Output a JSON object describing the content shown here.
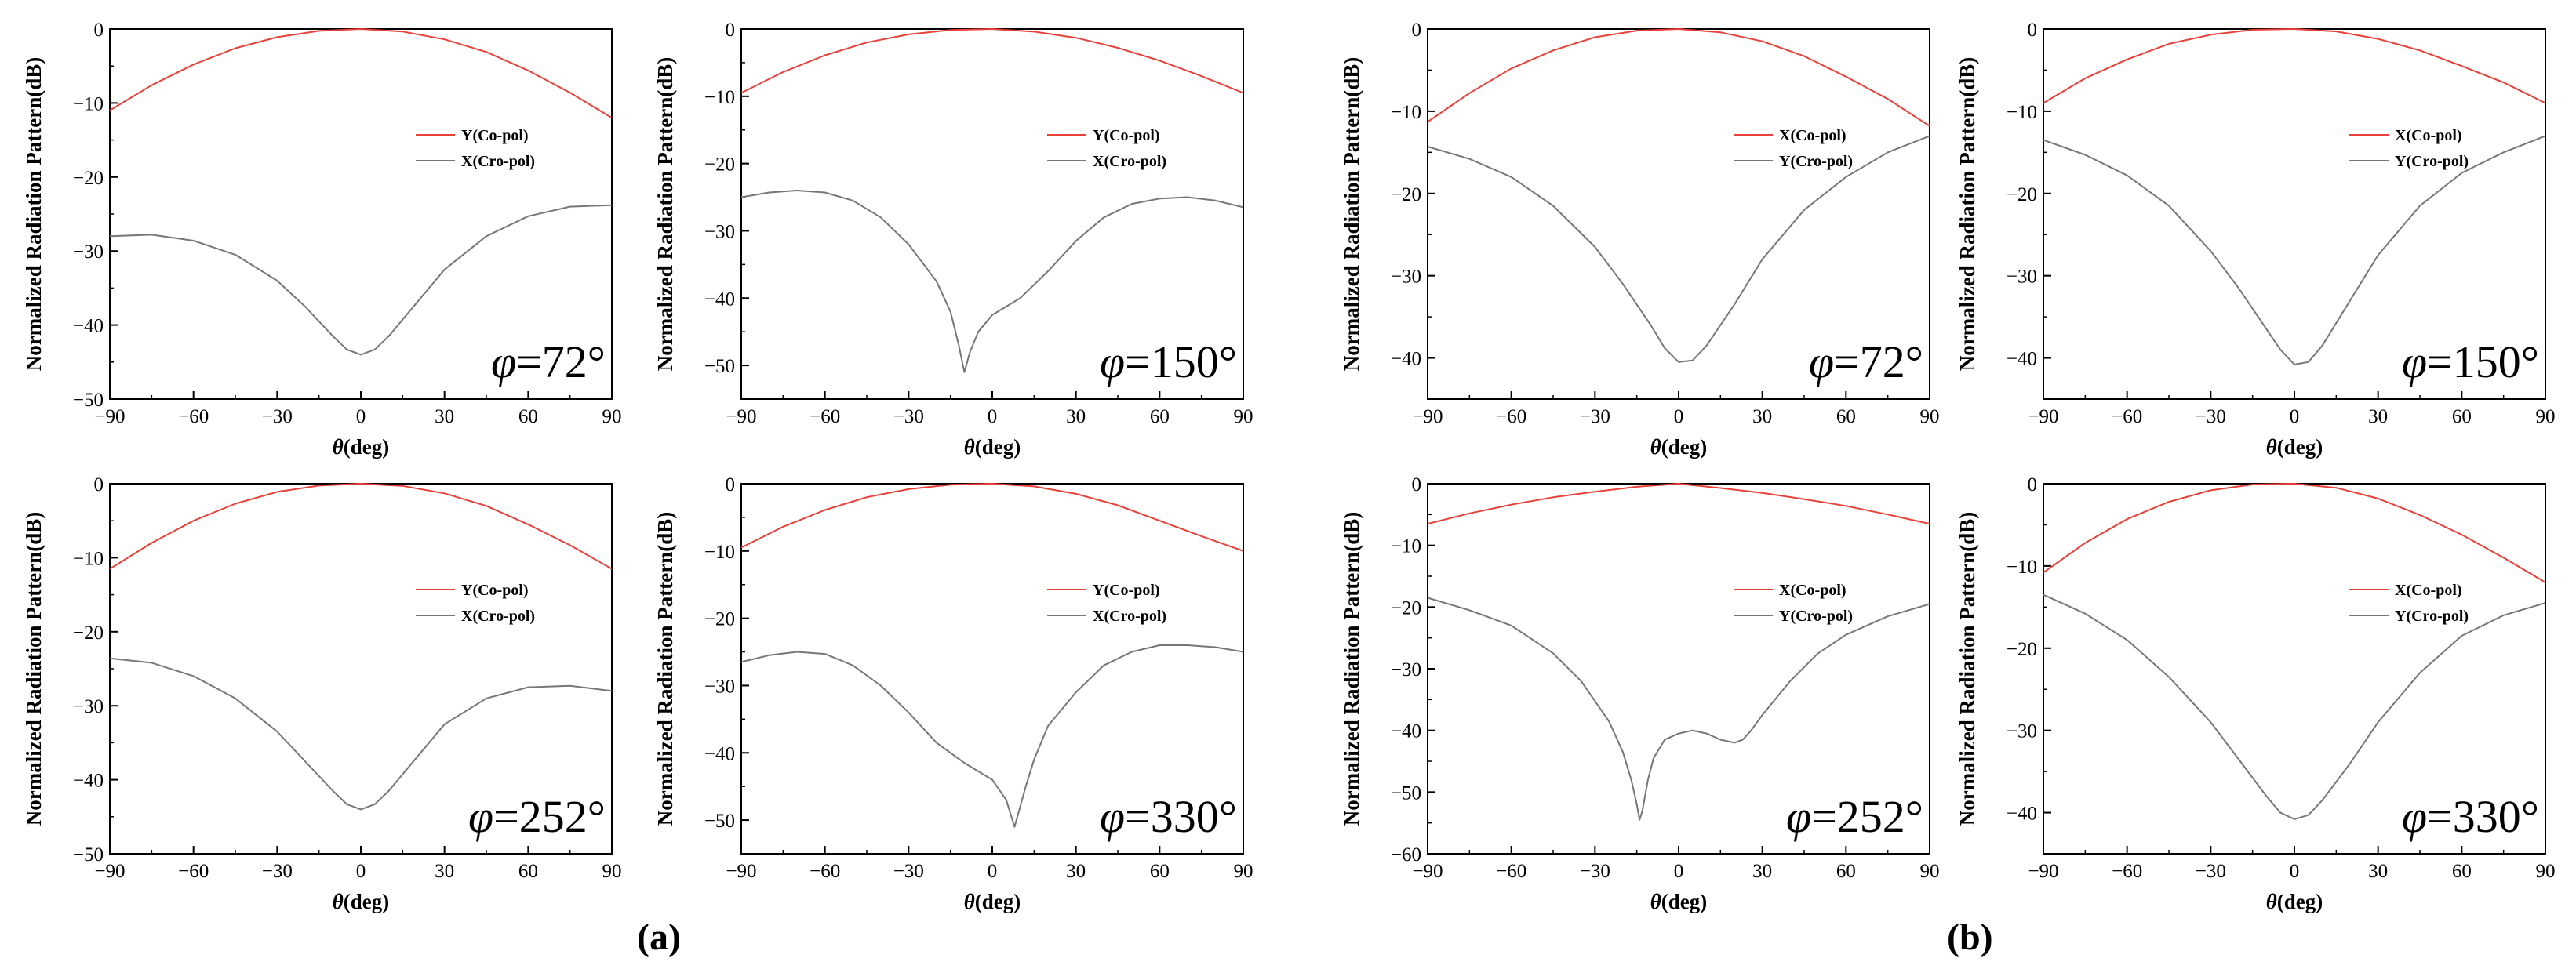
{
  "figure": {
    "labels": [
      "(a)",
      "(b)"
    ],
    "colors": {
      "co_pol": "#e8413a",
      "cross_pol": "#777777",
      "axis": "#000000"
    }
  },
  "chart_data": [
    {
      "type": "line",
      "group": "(a)",
      "annotation_symbol": "φ",
      "annotation_value": "=72°",
      "xlabel_symbol": "θ",
      "xlabel_rest": "(deg)",
      "ylabel": "Normalized Radiation Pattern(dB)",
      "xlim": [
        -90,
        90
      ],
      "ylim": [
        -50,
        0
      ],
      "xticks": [
        -90,
        -60,
        -30,
        0,
        30,
        60,
        90
      ],
      "yticks": [
        0,
        -10,
        -20,
        -30,
        -40,
        -50
      ],
      "legend_position": "right",
      "series": [
        {
          "name": "Y(Co-pol)",
          "color": "#e8413a",
          "x": [
            -90,
            -75,
            -60,
            -45,
            -30,
            -15,
            0,
            15,
            30,
            45,
            60,
            75,
            90
          ],
          "y": [
            -11,
            -7.6,
            -4.8,
            -2.6,
            -1.1,
            -0.25,
            0,
            -0.35,
            -1.4,
            -3.1,
            -5.6,
            -8.6,
            -12
          ]
        },
        {
          "name": "X(Cro-pol)",
          "color": "#777777",
          "x": [
            -90,
            -75,
            -60,
            -45,
            -30,
            -20,
            -10,
            -5,
            0,
            5,
            10,
            20,
            30,
            45,
            60,
            75,
            90
          ],
          "y": [
            -28,
            -27.8,
            -28.6,
            -30.5,
            -34,
            -37.5,
            -41.5,
            -43.3,
            -44,
            -43.3,
            -41.5,
            -37,
            -32.5,
            -28,
            -25.3,
            -24,
            -23.8
          ]
        }
      ]
    },
    {
      "type": "line",
      "group": "(a)",
      "annotation_symbol": "φ",
      "annotation_value": "=150°",
      "xlabel_symbol": "θ",
      "xlabel_rest": "(deg)",
      "ylabel": "Normalized Radiation Pattern(dB)",
      "xlim": [
        -90,
        90
      ],
      "ylim": [
        -55,
        0
      ],
      "xticks": [
        -90,
        -60,
        -30,
        0,
        30,
        60,
        90
      ],
      "yticks": [
        0,
        -10,
        -20,
        -30,
        -40,
        -50
      ],
      "legend_position": "right",
      "series": [
        {
          "name": "Y(Co-pol)",
          "color": "#e8413a",
          "x": [
            -90,
            -75,
            -60,
            -45,
            -30,
            -15,
            0,
            15,
            30,
            45,
            60,
            75,
            90
          ],
          "y": [
            -9.5,
            -6.4,
            -3.9,
            -2.0,
            -0.8,
            -0.15,
            0,
            -0.4,
            -1.3,
            -2.8,
            -4.7,
            -7,
            -9.5
          ]
        },
        {
          "name": "X(Cro-pol)",
          "color": "#777777",
          "x": [
            -90,
            -80,
            -70,
            -60,
            -50,
            -40,
            -30,
            -20,
            -15,
            -12,
            -10,
            -8,
            -5,
            0,
            10,
            20,
            30,
            40,
            50,
            60,
            70,
            80,
            90
          ],
          "y": [
            -25,
            -24.3,
            -24,
            -24.3,
            -25.5,
            -28,
            -32,
            -37.5,
            -42,
            -47,
            -51,
            -48,
            -45,
            -42.5,
            -40,
            -36,
            -31.5,
            -28,
            -26,
            -25.2,
            -25,
            -25.5,
            -26.5
          ]
        }
      ]
    },
    {
      "type": "line",
      "group": "(a)",
      "annotation_symbol": "φ",
      "annotation_value": "=252°",
      "xlabel_symbol": "θ",
      "xlabel_rest": "(deg)",
      "ylabel": "Normalized Radiation Pattern(dB)",
      "xlim": [
        -90,
        90
      ],
      "ylim": [
        -50,
        0
      ],
      "xticks": [
        -90,
        -60,
        -30,
        0,
        30,
        60,
        90
      ],
      "yticks": [
        0,
        -10,
        -20,
        -30,
        -40,
        -50
      ],
      "legend_position": "right",
      "series": [
        {
          "name": "Y(Co-pol)",
          "color": "#e8413a",
          "x": [
            -90,
            -75,
            -60,
            -45,
            -30,
            -15,
            0,
            15,
            30,
            45,
            60,
            75,
            90
          ],
          "y": [
            -11.5,
            -8,
            -5,
            -2.7,
            -1.1,
            -0.25,
            0,
            -0.3,
            -1.3,
            -3,
            -5.5,
            -8.3,
            -11.5
          ]
        },
        {
          "name": "X(Cro-pol)",
          "color": "#777777",
          "x": [
            -90,
            -75,
            -60,
            -45,
            -30,
            -20,
            -10,
            -5,
            0,
            5,
            10,
            20,
            30,
            45,
            60,
            75,
            90
          ],
          "y": [
            -23.6,
            -24.2,
            -26,
            -29,
            -33.5,
            -37.5,
            -41.5,
            -43.3,
            -44,
            -43.3,
            -41.5,
            -37,
            -32.5,
            -29,
            -27.5,
            -27.3,
            -28
          ]
        }
      ]
    },
    {
      "type": "line",
      "group": "(a)",
      "annotation_symbol": "φ",
      "annotation_value": "=330°",
      "xlabel_symbol": "θ",
      "xlabel_rest": "(deg)",
      "ylabel": "Normalized Radiation Pattern(dB)",
      "xlim": [
        -90,
        90
      ],
      "ylim": [
        -55,
        0
      ],
      "xticks": [
        -90,
        -60,
        -30,
        0,
        30,
        60,
        90
      ],
      "yticks": [
        0,
        -10,
        -20,
        -30,
        -40,
        -50
      ],
      "legend_position": "right",
      "series": [
        {
          "name": "Y(Co-pol)",
          "color": "#e8413a",
          "x": [
            -90,
            -75,
            -60,
            -45,
            -30,
            -15,
            0,
            15,
            30,
            45,
            60,
            75,
            90
          ],
          "y": [
            -9.5,
            -6.4,
            -3.9,
            -2,
            -0.8,
            -0.15,
            0,
            -0.4,
            -1.5,
            -3.2,
            -5.5,
            -7.8,
            -10
          ]
        },
        {
          "name": "X(Cro-pol)",
          "color": "#777777",
          "x": [
            -90,
            -80,
            -70,
            -60,
            -50,
            -40,
            -30,
            -20,
            -10,
            0,
            5,
            8,
            10,
            12,
            15,
            20,
            30,
            40,
            50,
            60,
            70,
            80,
            90
          ],
          "y": [
            -26.5,
            -25.5,
            -25,
            -25.3,
            -27,
            -30,
            -34,
            -38.5,
            -41.5,
            -44,
            -47,
            -51,
            -48,
            -45,
            -41,
            -36,
            -31,
            -27,
            -25,
            -24,
            -24,
            -24.3,
            -25
          ]
        }
      ]
    },
    {
      "type": "line",
      "group": "(b)",
      "annotation_symbol": "φ",
      "annotation_value": "=72°",
      "xlabel_symbol": "θ",
      "xlabel_rest": "(deg)",
      "ylabel": "Normalized Radiation Pattern(dB)",
      "xlim": [
        -90,
        90
      ],
      "ylim": [
        -45,
        0
      ],
      "xticks": [
        -90,
        -60,
        -30,
        0,
        30,
        60,
        90
      ],
      "yticks": [
        0,
        -10,
        -20,
        -30,
        -40
      ],
      "legend_position": "right",
      "series": [
        {
          "name": "X(Co-pol)",
          "color": "#e8413a",
          "x": [
            -90,
            -75,
            -60,
            -45,
            -30,
            -15,
            0,
            15,
            30,
            45,
            60,
            75,
            90
          ],
          "y": [
            -11.3,
            -7.8,
            -4.8,
            -2.6,
            -1,
            -0.2,
            0,
            -0.4,
            -1.5,
            -3.3,
            -5.8,
            -8.5,
            -11.8
          ]
        },
        {
          "name": "Y(Cro-pol)",
          "color": "#777777",
          "x": [
            -90,
            -75,
            -60,
            -45,
            -30,
            -20,
            -10,
            -5,
            0,
            5,
            10,
            20,
            30,
            45,
            60,
            75,
            90
          ],
          "y": [
            -14.3,
            -15.8,
            -18,
            -21.5,
            -26.5,
            -31,
            -36,
            -38.8,
            -40.5,
            -40.3,
            -38.5,
            -33.5,
            -28,
            -22,
            -18,
            -15,
            -13
          ]
        }
      ]
    },
    {
      "type": "line",
      "group": "(b)",
      "annotation_symbol": "φ",
      "annotation_value": "=150°",
      "xlabel_symbol": "θ",
      "xlabel_rest": "(deg)",
      "ylabel": "Normalized Radiation Pattern(dB)",
      "xlim": [
        -90,
        90
      ],
      "ylim": [
        -45,
        0
      ],
      "xticks": [
        -90,
        -60,
        -30,
        0,
        30,
        60,
        90
      ],
      "yticks": [
        0,
        -10,
        -20,
        -30,
        -40
      ],
      "legend_position": "right",
      "series": [
        {
          "name": "X(Co-pol)",
          "color": "#e8413a",
          "x": [
            -90,
            -75,
            -60,
            -45,
            -30,
            -15,
            0,
            15,
            30,
            45,
            60,
            75,
            90
          ],
          "y": [
            -9,
            -6,
            -3.7,
            -1.8,
            -0.7,
            -0.1,
            0,
            -0.3,
            -1.2,
            -2.6,
            -4.5,
            -6.5,
            -9
          ]
        },
        {
          "name": "Y(Cro-pol)",
          "color": "#777777",
          "x": [
            -90,
            -75,
            -60,
            -45,
            -30,
            -20,
            -10,
            -5,
            0,
            5,
            10,
            20,
            30,
            45,
            60,
            75,
            90
          ],
          "y": [
            -13.5,
            -15.3,
            -17.8,
            -21.5,
            -27,
            -31.5,
            -36.5,
            -39,
            -40.8,
            -40.5,
            -38.5,
            -33,
            -27.5,
            -21.5,
            -17.5,
            -15,
            -13
          ]
        }
      ]
    },
    {
      "type": "line",
      "group": "(b)",
      "annotation_symbol": "φ",
      "annotation_value": "=252°",
      "xlabel_symbol": "θ",
      "xlabel_rest": "(deg)",
      "ylabel": "Normalized Radiation Pattern(dB)",
      "xlim": [
        -90,
        90
      ],
      "ylim": [
        -60,
        0
      ],
      "xticks": [
        -90,
        -60,
        -30,
        0,
        30,
        60,
        90
      ],
      "yticks": [
        0,
        -10,
        -20,
        -30,
        -40,
        -50,
        -60
      ],
      "legend_position": "right",
      "series": [
        {
          "name": "X(Co-pol)",
          "color": "#e8413a",
          "x": [
            -90,
            -75,
            -60,
            -45,
            -30,
            -15,
            0,
            15,
            30,
            45,
            60,
            75,
            90
          ],
          "y": [
            -6.5,
            -4.8,
            -3.4,
            -2.2,
            -1.3,
            -0.5,
            0,
            -0.7,
            -1.5,
            -2.5,
            -3.6,
            -5,
            -6.5
          ]
        },
        {
          "name": "Y(Cro-pol)",
          "color": "#777777",
          "x": [
            -90,
            -75,
            -60,
            -45,
            -35,
            -25,
            -20,
            -17,
            -15,
            -14,
            -13,
            -11,
            -9,
            -5,
            0,
            5,
            10,
            15,
            20,
            23,
            26,
            30,
            40,
            50,
            60,
            75,
            90
          ],
          "y": [
            -18.5,
            -20.5,
            -23,
            -27.5,
            -32,
            -38.5,
            -43.5,
            -48,
            -52,
            -54.5,
            -53,
            -48,
            -44.5,
            -41.5,
            -40.5,
            -40,
            -40.5,
            -41.5,
            -42,
            -41.5,
            -40,
            -37.5,
            -32,
            -27.5,
            -24.5,
            -21.5,
            -19.5
          ]
        }
      ]
    },
    {
      "type": "line",
      "group": "(b)",
      "annotation_symbol": "φ",
      "annotation_value": "=330°",
      "xlabel_symbol": "θ",
      "xlabel_rest": "(deg)",
      "ylabel": "Normalized Radiation Pattern(dB)",
      "xlim": [
        -90,
        90
      ],
      "ylim": [
        -45,
        0
      ],
      "xticks": [
        -90,
        -60,
        -30,
        0,
        30,
        60,
        90
      ],
      "yticks": [
        0,
        -10,
        -20,
        -30,
        -40
      ],
      "legend_position": "right",
      "series": [
        {
          "name": "X(Co-pol)",
          "color": "#e8413a",
          "x": [
            -90,
            -75,
            -60,
            -45,
            -30,
            -15,
            0,
            15,
            30,
            45,
            60,
            75,
            90
          ],
          "y": [
            -10.8,
            -7.2,
            -4.3,
            -2.2,
            -0.8,
            -0.1,
            0,
            -0.5,
            -1.8,
            -3.8,
            -6.2,
            -9,
            -12
          ]
        },
        {
          "name": "Y(Cro-pol)",
          "color": "#777777",
          "x": [
            -90,
            -75,
            -60,
            -45,
            -30,
            -20,
            -10,
            -5,
            0,
            5,
            10,
            20,
            30,
            45,
            60,
            75,
            90
          ],
          "y": [
            -13.5,
            -15.8,
            -19,
            -23.5,
            -29,
            -33.5,
            -38,
            -40,
            -40.8,
            -40.3,
            -38.5,
            -34,
            -29,
            -23,
            -18.5,
            -16,
            -14.5
          ]
        }
      ]
    }
  ]
}
